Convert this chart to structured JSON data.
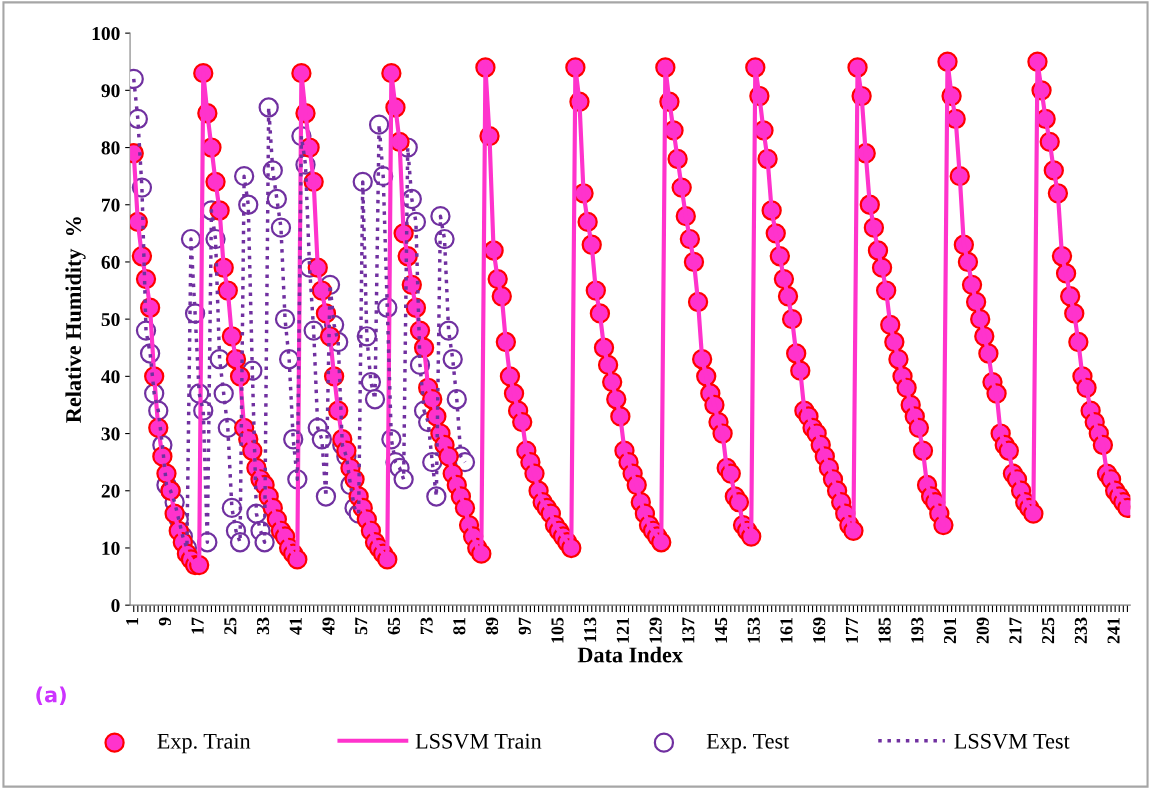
{
  "chart_data": {
    "type": "scatter",
    "xlabel": "Data Index",
    "ylabel": "Relative Humidity  %",
    "annotations": [
      "(a)"
    ],
    "categories": [
      "1",
      null,
      null,
      null,
      null,
      null,
      null,
      null,
      "9",
      null,
      null,
      null,
      null,
      null,
      null,
      null,
      "17",
      null,
      null,
      null,
      null,
      null,
      null,
      null,
      "25",
      null,
      null,
      null,
      null,
      null,
      null,
      null,
      "33",
      null,
      null,
      null,
      null,
      null,
      null,
      null,
      "41",
      null,
      null,
      null,
      null,
      null,
      null,
      null,
      "49",
      null,
      null,
      null,
      null,
      null,
      null,
      null,
      "57",
      null,
      null,
      null,
      null,
      null,
      null,
      null,
      "65",
      null,
      null,
      null,
      null,
      null,
      null,
      null,
      "73",
      null,
      null,
      null,
      null,
      null,
      null,
      null,
      "81",
      null,
      null,
      null,
      null,
      null,
      null,
      null,
      "89",
      null,
      null,
      null,
      null,
      null,
      null,
      null,
      "97",
      null,
      null,
      null,
      null,
      null,
      null,
      null,
      "105",
      null,
      null,
      null,
      null,
      null,
      null,
      null,
      "113",
      null,
      null,
      null,
      null,
      null,
      null,
      null,
      "121",
      null,
      null,
      null,
      null,
      null,
      null,
      null,
      "129",
      null,
      null,
      null,
      null,
      null,
      null,
      null,
      "137",
      null,
      null,
      null,
      null,
      null,
      null,
      null,
      "145",
      null,
      null,
      null,
      null,
      null,
      null,
      null,
      "153",
      null,
      null,
      null,
      null,
      null,
      null,
      null,
      "161",
      null,
      null,
      null,
      null,
      null,
      null,
      null,
      "169",
      null,
      null,
      null,
      null,
      null,
      null,
      null,
      "177",
      null,
      null,
      null,
      null,
      null,
      null,
      null,
      "185",
      null,
      null,
      null,
      null,
      null,
      null,
      null,
      "193",
      null,
      null,
      null,
      null,
      null,
      null,
      null,
      "201",
      null,
      null,
      null,
      null,
      null,
      null,
      null,
      "209",
      null,
      null,
      null,
      null,
      null,
      null,
      null,
      "217",
      null,
      null,
      null,
      null,
      null,
      null,
      null,
      "225",
      null,
      null,
      null,
      null,
      null,
      null,
      null,
      "233",
      null,
      null,
      null,
      null,
      null,
      null,
      null,
      "241",
      null,
      null,
      null
    ],
    "ylim": [
      0,
      100
    ],
    "yticks": [
      0,
      10,
      20,
      30,
      40,
      50,
      60,
      70,
      80,
      90,
      100
    ],
    "grid": false,
    "legend": "bottom",
    "series": [
      {
        "name": "Exp. Train",
        "marker": "circle",
        "color": "#ff33cc",
        "values": [
          79,
          67,
          61,
          57,
          52,
          40,
          31,
          26,
          23,
          20,
          16,
          13,
          11,
          9,
          8,
          7,
          7,
          93,
          86,
          80,
          74,
          69,
          59,
          55,
          47,
          43,
          40,
          31,
          29,
          27,
          24,
          22,
          21,
          19,
          17,
          15,
          13,
          12,
          10,
          9,
          8,
          93,
          86,
          80,
          74,
          59,
          55,
          51,
          47,
          40,
          34,
          29,
          27,
          24,
          22,
          19,
          17,
          15,
          13,
          11,
          10,
          9,
          8,
          93,
          87,
          81,
          65,
          61,
          56,
          52,
          48,
          45,
          38,
          36,
          33,
          30,
          28,
          26,
          23,
          21,
          19,
          17,
          14,
          12,
          10,
          9,
          94,
          82,
          62,
          57,
          54,
          46,
          40,
          37,
          34,
          32,
          27,
          25,
          23,
          20,
          18,
          17,
          16,
          14,
          13,
          12,
          11,
          10,
          94,
          88,
          72,
          67,
          63,
          55,
          51,
          45,
          42,
          39,
          36,
          33,
          27,
          25,
          23,
          21,
          18,
          16,
          14,
          13,
          12,
          11,
          94,
          88,
          83,
          78,
          73,
          68,
          64,
          60,
          53,
          43,
          40,
          37,
          35,
          32,
          30,
          24,
          23,
          19,
          18,
          14,
          13,
          12,
          94,
          89,
          83,
          78,
          69,
          65,
          61,
          57,
          54,
          50,
          44,
          41,
          34,
          33,
          31,
          30,
          28,
          26,
          24,
          22,
          20,
          18,
          16,
          14,
          13,
          94,
          89,
          79,
          70,
          66,
          62,
          59,
          55,
          49,
          46,
          43,
          40,
          38,
          35,
          33,
          31,
          27,
          21,
          19,
          18,
          16,
          14,
          95,
          89,
          85,
          75,
          63,
          60,
          56,
          53,
          50,
          47,
          44,
          39,
          37,
          30,
          28,
          27,
          23,
          22,
          20,
          18,
          17,
          16,
          95,
          90,
          85,
          81,
          76,
          72,
          61,
          58,
          54,
          51,
          46,
          40,
          38,
          34,
          32,
          30,
          28,
          23,
          22,
          20,
          19,
          18,
          17
        ]
      },
      {
        "name": "LSSVM Train",
        "type": "line",
        "line_style": "solid",
        "color": "#ff33cc",
        "values": [
          79,
          67,
          61,
          57,
          52,
          40,
          31,
          26,
          23,
          20,
          16,
          13,
          11,
          9,
          8,
          7,
          7,
          93,
          86,
          80,
          74,
          69,
          59,
          55,
          47,
          43,
          40,
          31,
          29,
          27,
          24,
          22,
          21,
          19,
          17,
          15,
          13,
          12,
          10,
          9,
          8,
          93,
          86,
          80,
          74,
          59,
          55,
          51,
          47,
          40,
          34,
          29,
          27,
          24,
          22,
          19,
          17,
          15,
          13,
          11,
          10,
          9,
          8,
          93,
          87,
          81,
          65,
          61,
          56,
          52,
          48,
          45,
          38,
          36,
          33,
          30,
          28,
          26,
          23,
          21,
          19,
          17,
          14,
          12,
          10,
          9,
          94,
          82,
          62,
          57,
          54,
          46,
          40,
          37,
          34,
          32,
          27,
          25,
          23,
          20,
          18,
          17,
          16,
          14,
          13,
          12,
          11,
          10,
          94,
          88,
          72,
          67,
          63,
          55,
          51,
          45,
          42,
          39,
          36,
          33,
          27,
          25,
          23,
          21,
          18,
          16,
          14,
          13,
          12,
          11,
          94,
          88,
          83,
          78,
          73,
          68,
          64,
          60,
          53,
          43,
          40,
          37,
          35,
          32,
          30,
          24,
          23,
          19,
          18,
          14,
          13,
          12,
          94,
          89,
          83,
          78,
          69,
          65,
          61,
          57,
          54,
          50,
          44,
          41,
          34,
          33,
          31,
          30,
          28,
          26,
          24,
          22,
          20,
          18,
          16,
          14,
          13,
          94,
          89,
          79,
          70,
          66,
          62,
          59,
          55,
          49,
          46,
          43,
          40,
          38,
          35,
          33,
          31,
          27,
          21,
          19,
          18,
          16,
          14,
          95,
          89,
          85,
          75,
          63,
          60,
          56,
          53,
          50,
          47,
          44,
          39,
          37,
          30,
          28,
          27,
          23,
          22,
          20,
          18,
          17,
          16,
          95,
          90,
          85,
          81,
          76,
          72,
          61,
          58,
          54,
          51,
          46,
          40,
          38,
          34,
          32,
          30,
          28,
          23,
          22,
          20,
          19,
          18,
          17
        ]
      },
      {
        "name": "Exp. Test",
        "marker": "circle",
        "color": "#7030a0",
        "values": [
          92,
          85,
          73,
          48,
          44,
          37,
          34,
          28,
          21,
          20,
          18,
          15,
          12,
          10,
          64,
          51,
          37,
          34,
          11,
          69,
          64,
          43,
          37,
          31,
          17,
          13,
          11,
          75,
          70,
          41,
          16,
          13,
          11,
          87,
          76,
          71,
          66,
          50,
          43,
          29,
          22,
          82,
          77,
          59,
          48,
          31,
          29,
          19,
          56,
          49,
          46,
          28,
          26,
          21,
          17,
          16,
          74,
          47,
          39,
          36,
          84,
          75,
          52,
          29,
          25,
          24,
          22,
          80,
          71,
          67,
          42,
          34,
          32,
          25,
          19,
          68,
          64,
          48,
          43,
          36,
          26,
          25,
          null,
          null,
          null,
          null,
          null,
          null,
          null,
          null,
          null,
          null,
          null,
          null,
          null,
          null,
          null,
          null,
          null,
          null,
          null,
          null,
          null,
          null,
          null,
          null,
          null,
          null,
          null,
          null,
          null,
          null,
          null,
          null,
          null,
          null,
          null,
          null,
          null,
          null,
          null,
          null,
          null,
          null,
          null,
          null,
          null,
          null,
          null,
          null,
          null,
          null,
          null,
          null,
          null,
          null,
          null,
          null,
          null,
          null,
          null,
          null,
          null,
          null,
          null,
          null,
          null,
          null,
          null,
          null,
          null,
          null,
          null,
          null,
          null,
          null,
          null,
          null,
          null,
          null,
          null,
          null,
          null,
          null,
          null,
          null,
          null,
          null,
          null,
          null,
          null,
          null,
          null,
          null,
          null,
          null,
          null,
          null,
          null,
          null,
          null,
          null,
          null,
          null,
          null,
          null,
          null,
          null,
          null,
          null,
          null,
          null,
          null,
          null,
          null,
          null,
          null,
          null,
          null,
          null,
          null,
          null,
          null,
          null,
          null,
          null,
          null,
          null,
          null,
          null,
          null,
          null,
          null,
          null,
          null,
          null,
          null,
          null,
          null,
          null,
          null,
          null,
          null,
          null,
          null,
          null,
          null,
          null,
          null,
          null,
          null,
          null,
          null,
          null,
          null,
          null,
          null,
          null,
          null,
          null,
          null,
          null,
          null,
          null
        ]
      },
      {
        "name": "LSSVM Test",
        "type": "line",
        "line_style": "dotted",
        "color": "#7030a0",
        "values": [
          92,
          85,
          73,
          48,
          44,
          37,
          34,
          28,
          21,
          20,
          18,
          15,
          12,
          10,
          64,
          51,
          37,
          34,
          11,
          69,
          64,
          43,
          37,
          31,
          17,
          13,
          11,
          75,
          70,
          41,
          16,
          13,
          11,
          87,
          76,
          71,
          66,
          50,
          43,
          29,
          22,
          82,
          77,
          59,
          48,
          31,
          29,
          19,
          56,
          49,
          46,
          28,
          26,
          21,
          17,
          16,
          74,
          47,
          39,
          36,
          84,
          75,
          52,
          29,
          25,
          24,
          22,
          80,
          71,
          67,
          42,
          34,
          32,
          25,
          19,
          68,
          64,
          48,
          43,
          36,
          26,
          25,
          null,
          null,
          null,
          null,
          null,
          null,
          null,
          null,
          null,
          null,
          null,
          null,
          null,
          null,
          null,
          null,
          null,
          null,
          null,
          null,
          null,
          null,
          null,
          null,
          null,
          null,
          null,
          null,
          null,
          null,
          null,
          null,
          null,
          null,
          null,
          null,
          null,
          null,
          null,
          null,
          null,
          null,
          null,
          null,
          null,
          null,
          null,
          null,
          null,
          null,
          null,
          null,
          null,
          null,
          null,
          null,
          null,
          null,
          null,
          null,
          null,
          null,
          null,
          null,
          null,
          null,
          null,
          null,
          null,
          null,
          null,
          null,
          null,
          null,
          null,
          null,
          null,
          null,
          null,
          null,
          null,
          null,
          null,
          null,
          null,
          null,
          null,
          null,
          null,
          null,
          null,
          null,
          null,
          null,
          null,
          null,
          null,
          null,
          null,
          null,
          null,
          null,
          null,
          null,
          null,
          null,
          null,
          null,
          null,
          null,
          null,
          null,
          null,
          null,
          null,
          null,
          null,
          null,
          null,
          null,
          null,
          null,
          null,
          null,
          null,
          null,
          null,
          null,
          null,
          null,
          null,
          null,
          null,
          null,
          null,
          null,
          null,
          null,
          null,
          null,
          null,
          null,
          null,
          null,
          null,
          null,
          null,
          null,
          null,
          null,
          null,
          null,
          null,
          null,
          null,
          null,
          null,
          null,
          null,
          null,
          null,
          null
        ]
      }
    ]
  }
}
